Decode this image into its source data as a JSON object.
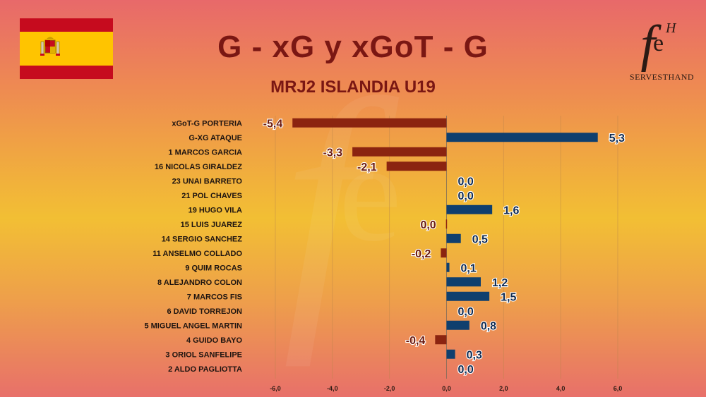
{
  "header": {
    "title": "G - xG y xGoT - G",
    "subtitle": "MRJ2 ISLANDIA U19"
  },
  "logo": {
    "mark": "f",
    "superscript": "H",
    "letter": "e",
    "brand": "SERVESTHAND"
  },
  "flag": {
    "name": "spain-flag",
    "colors": [
      "#c60b1e",
      "#ffc400"
    ]
  },
  "colors": {
    "positive": "#0f3f6e",
    "negative": "#8b2410",
    "label_positive": "#0f2b52",
    "label_negative": "#6b1a10"
  },
  "chart_data": {
    "type": "bar",
    "orientation": "horizontal",
    "title": "G - xG y xGoT - G",
    "subtitle": "MRJ2 ISLANDIA U19",
    "categories": [
      "xGoT-G PORTERIA",
      "G-XG ATAQUE",
      "1 MARCOS GARCIA",
      "16 NICOLAS GIRALDEZ",
      "23 UNAI BARRETO",
      "21 POL CHAVES",
      "19 HUGO VILA",
      "15 LUIS JUAREZ",
      "14 SERGIO SANCHEZ",
      "11 ANSELMO COLLADO",
      "9 QUIM ROCAS",
      "8 ALEJANDRO COLON",
      "7 MARCOS FIS",
      "6 DAVID TORREJON",
      "5 MIGUEL ANGEL MARTIN",
      "4 GUIDO BAYO",
      "3 ORIOL SANFELIPE",
      "2 ALDO PAGLIOTTA"
    ],
    "values": [
      -5.4,
      5.3,
      -3.3,
      -2.1,
      0.0,
      0.0,
      1.6,
      -0.02,
      0.5,
      -0.2,
      0.1,
      1.2,
      1.5,
      0.0,
      0.8,
      -0.4,
      0.3,
      0.0
    ],
    "value_labels": [
      "-5,4",
      "5,3",
      "-3,3",
      "-2,1",
      "0,0",
      "0,0",
      "1,6",
      "0,0",
      "0,5",
      "-0,2",
      "0,1",
      "1,2",
      "1,5",
      "0,0",
      "0,8",
      "-0,4",
      "0,3",
      "0,0"
    ],
    "label_side": [
      "neg",
      "pos",
      "neg",
      "neg",
      "pos",
      "pos",
      "pos",
      "neg",
      "pos",
      "neg",
      "pos",
      "pos",
      "pos",
      "pos",
      "pos",
      "neg",
      "pos",
      "pos"
    ],
    "xticks": [
      -6,
      -4,
      -2,
      0,
      2,
      4,
      6
    ],
    "xtick_labels": [
      "-6,0",
      "-4,0",
      "-2,0",
      "0,0",
      "2,0",
      "4,0",
      "6,0"
    ],
    "xlim": [
      -6,
      6
    ],
    "grid": "vertical",
    "legend": "none"
  }
}
